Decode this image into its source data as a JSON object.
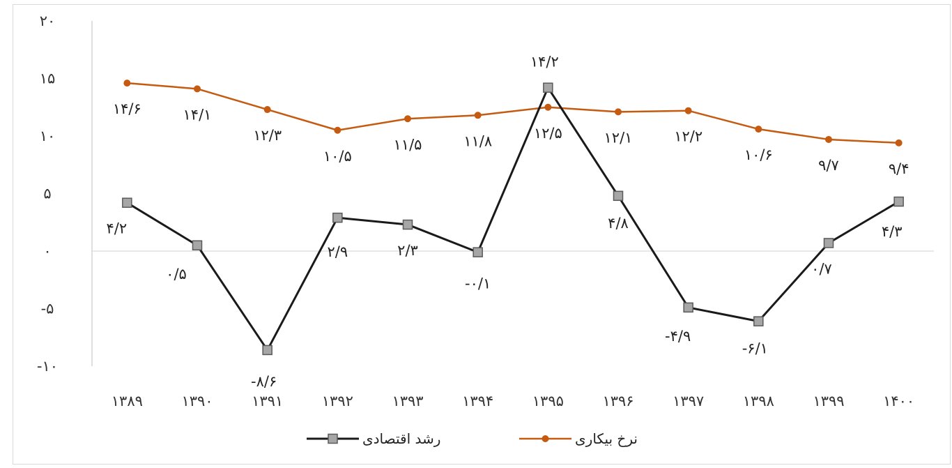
{
  "chart_data": {
    "type": "line",
    "title": "",
    "xlabel": "",
    "ylabel": "",
    "categories": [
      "۱۳۸۹",
      "۱۳۹۰",
      "۱۳۹۱",
      "۱۳۹۲",
      "۱۳۹۳",
      "۱۳۹۴",
      "۱۳۹۵",
      "۱۳۹۶",
      "۱۳۹۷",
      "۱۳۹۸",
      "۱۳۹۹",
      "۱۴۰۰"
    ],
    "ylim": [
      -10,
      20
    ],
    "y_ticks": [
      {
        "value": 20,
        "label": "۲۰"
      },
      {
        "value": 15,
        "label": "۱۵"
      },
      {
        "value": 10,
        "label": "۱۰"
      },
      {
        "value": 5,
        "label": "۵"
      },
      {
        "value": 0,
        "label": "۰"
      },
      {
        "value": -5,
        "label": "-۵"
      },
      {
        "value": -10,
        "label": "-۱۰"
      }
    ],
    "grid": false,
    "legend_position": "bottom",
    "series": [
      {
        "name": "نرخ بیکاری",
        "color": "#C55A11",
        "marker": "circle",
        "values": [
          14.6,
          14.1,
          12.3,
          10.5,
          11.5,
          11.8,
          12.5,
          12.1,
          12.2,
          10.6,
          9.7,
          9.4
        ],
        "labels": [
          "۱۴/۶",
          "۱۴/۱",
          "۱۲/۳",
          "۱۰/۵",
          "۱۱/۵",
          "۱۱/۸",
          "۱۲/۵",
          "۱۲/۱",
          "۱۲/۲",
          "۱۰/۶",
          "۹/۷",
          "۹/۴"
        ]
      },
      {
        "name": "رشد اقتصادی",
        "color": "#1a1a1a",
        "marker": "square",
        "values": [
          4.2,
          0.5,
          -8.6,
          2.9,
          2.3,
          -0.1,
          14.2,
          4.8,
          -4.9,
          -6.1,
          0.7,
          4.3
        ],
        "labels": [
          "۴/۲",
          "۰/۵",
          "-۸/۶",
          "۲/۹",
          "۲/۳",
          "-۰/۱",
          "۱۴/۲",
          "۴/۸",
          "-۴/۹",
          "-۶/۱",
          "۰/۷",
          "۴/۳"
        ]
      }
    ]
  }
}
